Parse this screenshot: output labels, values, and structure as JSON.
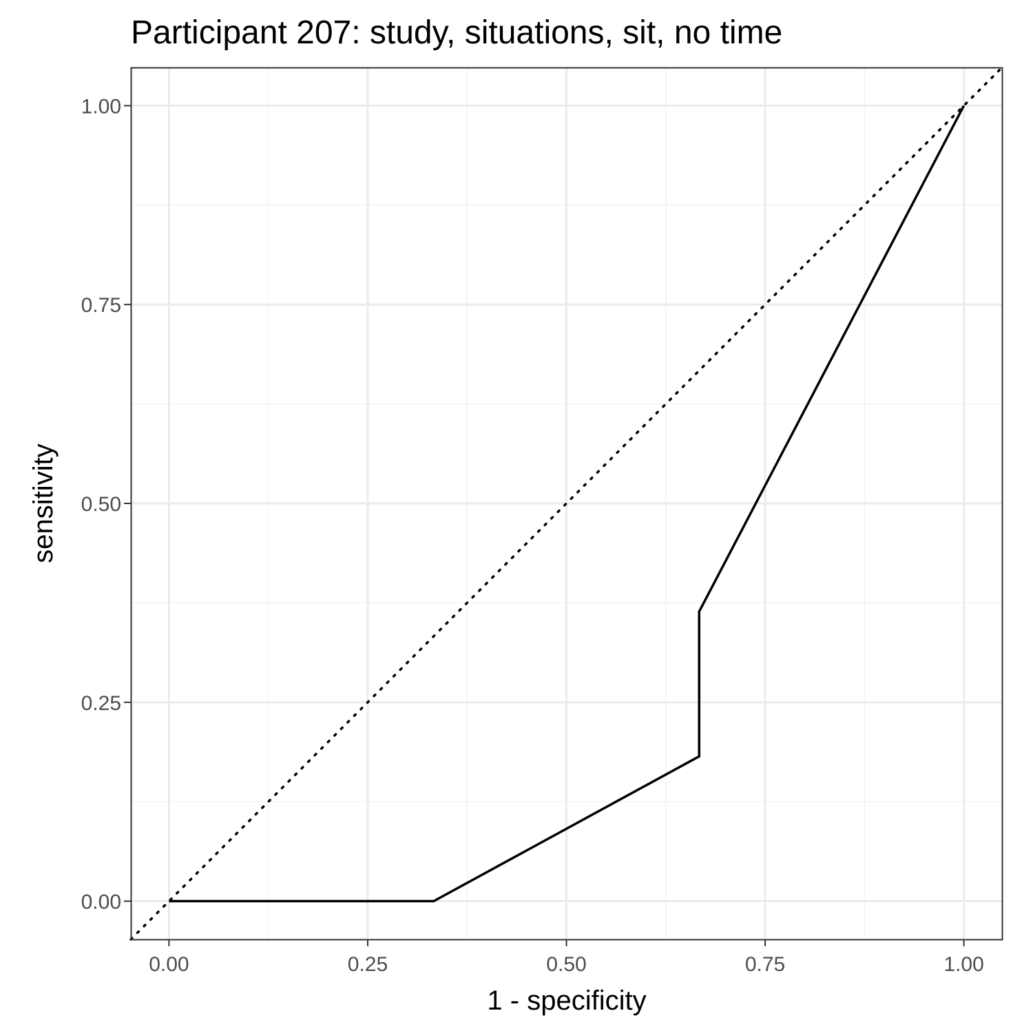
{
  "chart_data": {
    "type": "line",
    "title": "Participant 207: study, situations, sit, no time",
    "xlabel": "1 - specificity",
    "ylabel": "sensitivity",
    "xlim": [
      -0.048,
      1.048
    ],
    "ylim": [
      -0.048,
      1.048
    ],
    "x_ticks": [
      "0.00",
      "0.25",
      "0.50",
      "0.75",
      "1.00"
    ],
    "y_ticks": [
      "0.00",
      "0.25",
      "0.50",
      "0.75",
      "1.00"
    ],
    "grid": true,
    "series": [
      {
        "style": "solid",
        "color": "#000000",
        "x": [
          0.0,
          0.333,
          0.667,
          0.667,
          1.0
        ],
        "y": [
          0.0,
          0.0,
          0.182,
          0.364,
          1.0
        ]
      }
    ],
    "reference_line": {
      "style": "dotted",
      "color": "#000000",
      "x": [
        -0.048,
        1.048
      ],
      "y": [
        -0.048,
        1.048
      ]
    },
    "colors": {
      "panel_border": "#333333",
      "grid_major": "#ebebeb",
      "grid_minor": "#f2f2f2",
      "tick_label": "#4d4d4d"
    }
  }
}
